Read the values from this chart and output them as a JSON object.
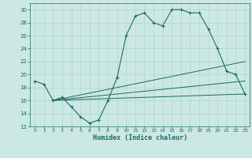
{
  "xlabel": "Humidex (Indice chaleur)",
  "bg_color": "#cce8e4",
  "line_color": "#1a6b62",
  "grid_color": "#aed4ce",
  "xlim": [
    -0.5,
    23.5
  ],
  "ylim": [
    12,
    31
  ],
  "xticks": [
    0,
    1,
    2,
    3,
    4,
    5,
    6,
    7,
    8,
    9,
    10,
    11,
    12,
    13,
    14,
    15,
    16,
    17,
    18,
    19,
    20,
    21,
    22,
    23
  ],
  "yticks": [
    12,
    14,
    16,
    18,
    20,
    22,
    24,
    26,
    28,
    30
  ],
  "line1_x": [
    0,
    1,
    2,
    3,
    4,
    5,
    6,
    7,
    8,
    9,
    10,
    11,
    12,
    13,
    14,
    15,
    16,
    17,
    18,
    19,
    20,
    21,
    22,
    23
  ],
  "line1_y": [
    19,
    18.5,
    16,
    16.5,
    15,
    13.5,
    12.5,
    13,
    16,
    19.5,
    26,
    29,
    29.5,
    28,
    27.5,
    30,
    30,
    29.5,
    29.5,
    27,
    24,
    20.5,
    20,
    17
  ],
  "line2_x": [
    2,
    23
  ],
  "line2_y": [
    16,
    22
  ],
  "line3_x": [
    2,
    23
  ],
  "line3_y": [
    16,
    19
  ],
  "line4_x": [
    2,
    23
  ],
  "line4_y": [
    16,
    17
  ]
}
